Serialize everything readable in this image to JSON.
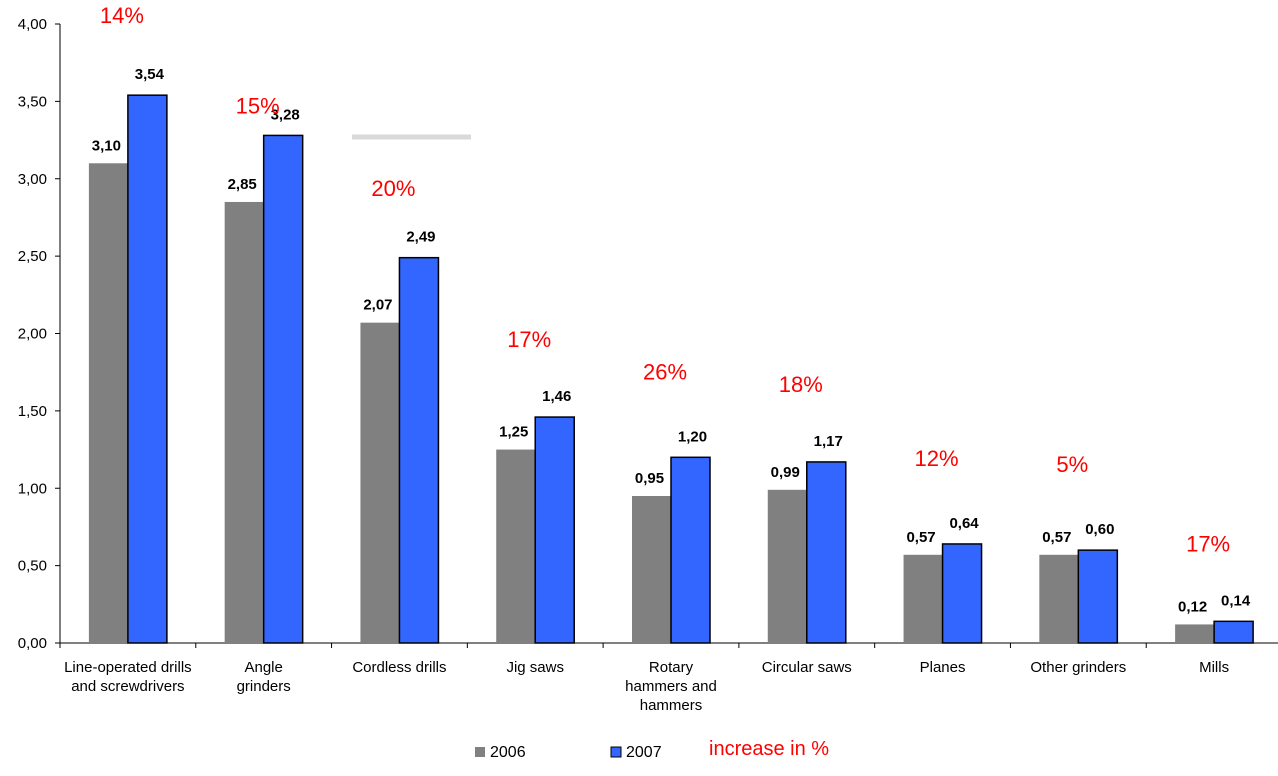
{
  "chart_data": {
    "type": "bar",
    "categories": [
      [
        "Line-operated drills",
        "and screwdrivers"
      ],
      [
        "Angle",
        "grinders"
      ],
      [
        "Cordless drills"
      ],
      [
        "Jig saws"
      ],
      [
        "Rotary",
        "hammers and",
        "hammers"
      ],
      [
        "Circular saws"
      ],
      [
        "Planes"
      ],
      [
        "Other grinders"
      ],
      [
        "Mills"
      ]
    ],
    "series": [
      {
        "name": "2006",
        "color": "#808080",
        "values": [
          3.1,
          2.85,
          2.07,
          1.25,
          0.95,
          0.99,
          0.57,
          0.57,
          0.12
        ],
        "labels": [
          "3,10",
          "2,85",
          "2,07",
          "1,25",
          "0,95",
          "0,99",
          "0,57",
          "0,57",
          "0,12"
        ]
      },
      {
        "name": "2007",
        "color": "#3366ff",
        "values": [
          3.54,
          3.28,
          2.49,
          1.46,
          1.2,
          1.17,
          0.64,
          0.6,
          0.14
        ],
        "labels": [
          "3,54",
          "3,28",
          "2,49",
          "1,46",
          "1,20",
          "1,17",
          "0,64",
          "0,60",
          "0,14"
        ]
      }
    ],
    "increase_labels": [
      "14%",
      "15%",
      "20%",
      "17%",
      "26%",
      "18%",
      "12%",
      "5%",
      "17%"
    ],
    "increase_color": "#ff0000",
    "ylim": [
      0,
      4
    ],
    "yticks": [
      0,
      0.5,
      1,
      1.5,
      2,
      2.5,
      3,
      3.5,
      4
    ],
    "ytick_labels": [
      "0,00",
      "0,50",
      "1,00",
      "1,50",
      "2,00",
      "2,50",
      "3,00",
      "3,50",
      "4,00"
    ],
    "grid": false,
    "legend": {
      "placement": "bottom",
      "entries": [
        "2006",
        "2007"
      ],
      "note": "increase in %"
    },
    "title": "",
    "xlabel": "",
    "ylabel": ""
  }
}
